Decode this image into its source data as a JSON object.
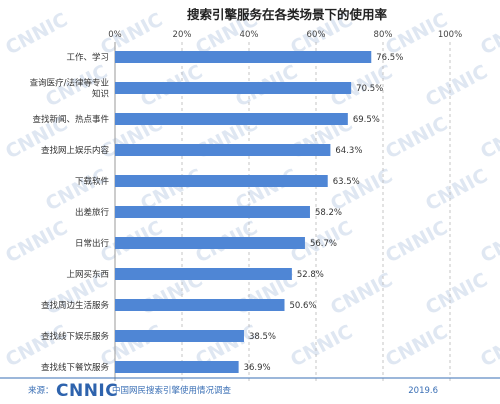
{
  "chart_data": {
    "type": "bar",
    "orientation": "horizontal",
    "title": "搜索引擎服务在各类场景下的使用率",
    "xlim": [
      0,
      100
    ],
    "ticks": [
      "0%",
      "20%",
      "40%",
      "60%",
      "80%",
      "100%"
    ],
    "grid": false,
    "bar_color": "#4f86d5",
    "categories": [
      [
        "工作、学习"
      ],
      [
        "查询医疗/法律等专业",
        "知识"
      ],
      [
        "查找新闻、热点事件"
      ],
      [
        "查找网上娱乐内容"
      ],
      [
        "下载软件"
      ],
      [
        "出差旅行"
      ],
      [
        "日常出行"
      ],
      [
        "上网买东西"
      ],
      [
        "查找周边生活服务"
      ],
      [
        "查找线下娱乐服务"
      ],
      [
        "查找线下餐饮服务"
      ]
    ],
    "values": [
      76.5,
      70.5,
      69.5,
      64.3,
      63.5,
      58.2,
      56.7,
      52.8,
      50.6,
      38.5,
      36.9
    ],
    "value_labels": [
      "76.5%",
      "70.5%",
      "69.5%",
      "64.3%",
      "63.5%",
      "58.2%",
      "56.7%",
      "52.8%",
      "50.6%",
      "38.5%",
      "36.9%"
    ]
  },
  "footer": {
    "source_label": "来源：",
    "logo": "CNNIC",
    "report": "中国网民搜索引擎使用情况调查",
    "date": "2019.6"
  },
  "watermark": "CNNIC"
}
